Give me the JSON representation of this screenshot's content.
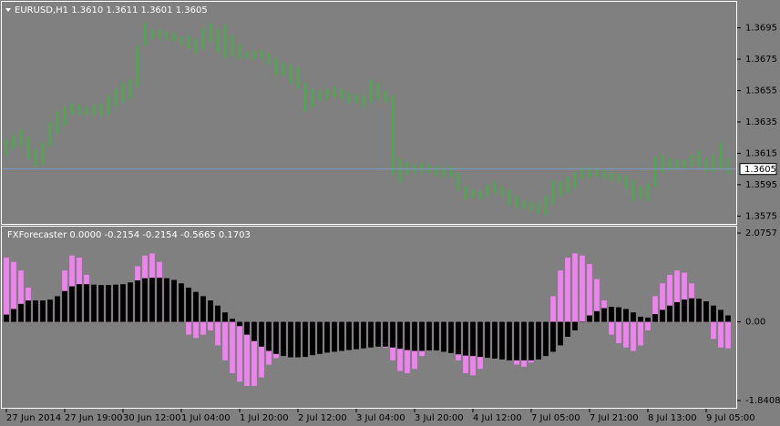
{
  "chart_data": [
    {
      "type": "ohlc",
      "title": "EURUSD,H1  1.3610 1.3611 1.3601 1.3605",
      "color": "#00e000",
      "ylim": [
        1.357,
        1.3711
      ],
      "yticks": [
        1.3695,
        1.3675,
        1.3655,
        1.3635,
        1.3615,
        1.3595,
        1.3575
      ],
      "last_price": 1.3605,
      "last_price_color": "#7b9ec2",
      "high": [
        1.3624,
        1.3627,
        1.363,
        1.3626,
        1.3618,
        1.3622,
        1.3635,
        1.3642,
        1.3645,
        1.3647,
        1.3646,
        1.3645,
        1.3646,
        1.3647,
        1.3652,
        1.3656,
        1.366,
        1.3662,
        1.3683,
        1.3698,
        1.3694,
        1.3694,
        1.3693,
        1.3692,
        1.369,
        1.369,
        1.3688,
        1.3695,
        1.3698,
        1.3694,
        1.3697,
        1.369,
        1.3685,
        1.368,
        1.368,
        1.3681,
        1.3679,
        1.3676,
        1.3673,
        1.3672,
        1.367,
        1.366,
        1.3656,
        1.3655,
        1.3656,
        1.3658,
        1.3656,
        1.3654,
        1.3653,
        1.3652,
        1.3662,
        1.366,
        1.3655,
        1.3652,
        1.3612,
        1.361,
        1.3608,
        1.3609,
        1.3608,
        1.3607,
        1.3606,
        1.3607,
        1.3603,
        1.3594,
        1.3592,
        1.3591,
        1.3595,
        1.3597,
        1.3594,
        1.3592,
        1.3588,
        1.3585,
        1.3584,
        1.3583,
        1.3588,
        1.3598,
        1.3597,
        1.36,
        1.3603,
        1.3606,
        1.3606,
        1.3605,
        1.3604,
        1.3603,
        1.3602,
        1.3601,
        1.3598,
        1.3594,
        1.3596,
        1.3613,
        1.3614,
        1.3612,
        1.3611,
        1.3611,
        1.3614,
        1.3617,
        1.3612,
        1.3614,
        1.3622,
        1.3612
      ],
      "low": [
        1.3614,
        1.3618,
        1.362,
        1.3612,
        1.3607,
        1.3608,
        1.362,
        1.3628,
        1.3633,
        1.364,
        1.364,
        1.364,
        1.364,
        1.3639,
        1.364,
        1.3645,
        1.3648,
        1.365,
        1.3658,
        1.3684,
        1.3688,
        1.3689,
        1.3688,
        1.3687,
        1.3684,
        1.3682,
        1.3679,
        1.3682,
        1.3686,
        1.368,
        1.3676,
        1.3678,
        1.3676,
        1.3676,
        1.3675,
        1.3676,
        1.3672,
        1.3665,
        1.3665,
        1.366,
        1.3657,
        1.3642,
        1.3645,
        1.3649,
        1.365,
        1.3651,
        1.365,
        1.3648,
        1.3647,
        1.3645,
        1.3648,
        1.365,
        1.3648,
        1.3602,
        1.3597,
        1.3602,
        1.3603,
        1.3603,
        1.3603,
        1.3601,
        1.36,
        1.36,
        1.3592,
        1.3586,
        1.3587,
        1.3586,
        1.3588,
        1.359,
        1.3588,
        1.3583,
        1.3581,
        1.358,
        1.3579,
        1.3577,
        1.3576,
        1.3583,
        1.3588,
        1.359,
        1.3593,
        1.3599,
        1.36,
        1.36,
        1.3599,
        1.3598,
        1.3597,
        1.3593,
        1.3585,
        1.3587,
        1.3585,
        1.3594,
        1.3603,
        1.3605,
        1.3606,
        1.3606,
        1.3607,
        1.3607,
        1.3604,
        1.3604,
        1.3606,
        1.3602
      ]
    },
    {
      "type": "histogram",
      "title": "FXForecaster 0.0000 -0.2154 -0.2154 -0.5665 0.1703",
      "ylim": [
        -2.01,
        2.204
      ],
      "yticks": [
        2.0757,
        {
          "value": 0,
          "label": "0.00"
        },
        -1.8408
      ],
      "xlim": [
        -0.5,
        99.5
      ],
      "xticks": [
        {
          "value": 0,
          "label": "27 Jun 2014"
        },
        {
          "value": 8,
          "label": "27 Jun 19:00"
        },
        {
          "value": 16,
          "label": "30 Jun 12:00"
        },
        {
          "value": 24,
          "label": "1 Jul 04:00"
        },
        {
          "value": 32,
          "label": "1 Jul 20:00"
        },
        {
          "value": 40,
          "label": "2 Jul 12:00"
        },
        {
          "value": 48,
          "label": "3 Jul 04:00"
        },
        {
          "value": 56,
          "label": "3 Jul 20:00"
        },
        {
          "value": 64,
          "label": "4 Jul 12:00"
        },
        {
          "value": 72,
          "label": "7 Jul 05:00"
        },
        {
          "value": 80,
          "label": "7 Jul 21:00"
        },
        {
          "value": 88,
          "label": "8 Jul 13:00"
        },
        {
          "value": 96,
          "label": "9 Jul 05:00"
        }
      ],
      "series": [
        {
          "color": "#ee82ee",
          "values": [
            1.5,
            1.4,
            1.2,
            0.8,
            0.5,
            0.35,
            0.35,
            0.6,
            1.2,
            1.55,
            1.5,
            1.1,
            0.8,
            0.75,
            0.8,
            0.8,
            0.8,
            0.9,
            1.3,
            1.55,
            1.6,
            1.4,
            1.0,
            0.6,
            0.05,
            -0.3,
            -0.38,
            -0.3,
            -0.2,
            -0.55,
            -0.9,
            -1.2,
            -1.4,
            -1.5,
            -1.5,
            -1.3,
            -1.0,
            -0.85,
            -0.8,
            -0.6,
            -0.3,
            -0.15,
            -0.1,
            -0.1,
            -0.1,
            -0.1,
            -0.1,
            -0.15,
            -0.2,
            -0.3,
            -0.4,
            -0.5,
            -0.6,
            -0.9,
            -1.15,
            -1.2,
            -1.1,
            -0.8,
            -0.5,
            -0.4,
            -0.5,
            -0.6,
            -0.9,
            -1.2,
            -1.25,
            -1.1,
            -0.8,
            -0.5,
            -0.6,
            -0.7,
            -1.0,
            -1.05,
            -0.95,
            -0.6,
            -0.3,
            0.6,
            1.2,
            1.5,
            1.6,
            1.55,
            1.35,
            1.0,
            0.5,
            -0.3,
            -0.5,
            -0.6,
            -0.68,
            -0.55,
            -0.2,
            0.6,
            0.9,
            1.1,
            1.2,
            1.15,
            0.9,
            0.5,
            0.1,
            -0.4,
            -0.6,
            -0.62
          ]
        },
        {
          "color": "#000000",
          "values": [
            0.17,
            0.3,
            0.42,
            0.5,
            0.5,
            0.5,
            0.52,
            0.6,
            0.72,
            0.83,
            0.88,
            0.88,
            0.87,
            0.86,
            0.86,
            0.87,
            0.88,
            0.92,
            0.97,
            1.02,
            1.03,
            1.03,
            1.02,
            0.98,
            0.9,
            0.8,
            0.7,
            0.6,
            0.5,
            0.38,
            0.22,
            0.07,
            -0.1,
            -0.3,
            -0.45,
            -0.58,
            -0.68,
            -0.75,
            -0.8,
            -0.83,
            -0.83,
            -0.82,
            -0.78,
            -0.75,
            -0.72,
            -0.7,
            -0.68,
            -0.66,
            -0.64,
            -0.62,
            -0.6,
            -0.58,
            -0.58,
            -0.6,
            -0.63,
            -0.66,
            -0.68,
            -0.68,
            -0.67,
            -0.67,
            -0.7,
            -0.73,
            -0.76,
            -0.79,
            -0.8,
            -0.82,
            -0.84,
            -0.86,
            -0.88,
            -0.9,
            -0.9,
            -0.9,
            -0.9,
            -0.88,
            -0.8,
            -0.7,
            -0.55,
            -0.35,
            -0.2,
            0.0,
            0.15,
            0.25,
            0.32,
            0.35,
            0.34,
            0.3,
            0.22,
            0.12,
            0.1,
            0.18,
            0.28,
            0.38,
            0.46,
            0.52,
            0.55,
            0.54,
            0.48,
            0.38,
            0.28,
            0.15
          ]
        }
      ]
    }
  ]
}
